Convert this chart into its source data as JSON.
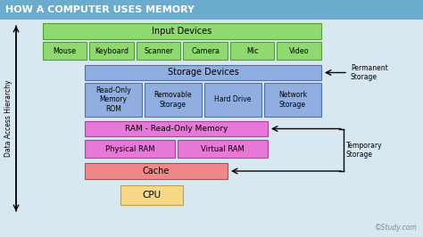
{
  "title": "HOW A COMPUTER USES MEMORY",
  "title_color": "#ffffff",
  "title_bg": "#6aabce",
  "bg_color": "#d8e8f0",
  "green_fill": "#90d870",
  "green_edge": "#50a030",
  "blue_fill": "#90aee0",
  "blue_edge": "#5070b0",
  "pink_fill": "#e878d8",
  "pink_edge": "#b040a0",
  "salmon_fill": "#f08888",
  "salmon_edge": "#d04040",
  "yellow_fill": "#f5d888",
  "yellow_edge": "#c0a040",
  "watermark": "©Study.com",
  "axis_label": "Data Access Hierarchy",
  "permanent_label": "Permanent\nStorage",
  "temporary_label": "Temporary\nStorage",
  "input_devices_label": "Input Devices",
  "storage_devices_label": "Storage Devices",
  "ram_label": "RAM - Read-Only Memory",
  "cache_label": "Cache",
  "cpu_label": "CPU",
  "device_row": [
    "Mouse",
    "Keyboard",
    "Scanner",
    "Camera",
    "Mic",
    "Video"
  ],
  "storage_row": [
    "Read-Only\nMemory\nROM",
    "Removable\nStorage",
    "Hard Drive",
    "Network\nStorage"
  ]
}
